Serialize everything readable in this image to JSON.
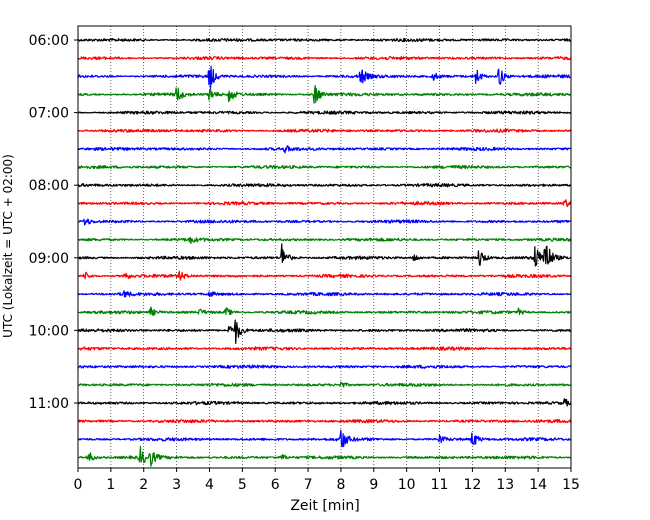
{
  "chart_data": {
    "type": "line",
    "title": "",
    "xlabel": "Zeit  [min]",
    "ylabel": "UTC (Lokalzeit = UTC + 02:00)",
    "xlim": [
      0,
      15
    ],
    "xticks": [
      0,
      1,
      2,
      3,
      4,
      5,
      6,
      7,
      8,
      9,
      10,
      11,
      12,
      13,
      14,
      15
    ],
    "xtick_labels": [
      "0",
      "1",
      "2",
      "3",
      "4",
      "5",
      "6",
      "7",
      "8",
      "9",
      "10",
      "11",
      "12",
      "13",
      "14",
      "15"
    ],
    "ytick_labels": [
      "06:00",
      "07:00",
      "08:00",
      "09:00",
      "10:00",
      "11:00"
    ],
    "ytick_rows": [
      0,
      4,
      8,
      12,
      16,
      20
    ],
    "grid_x": true,
    "colors": [
      "#000000",
      "#ff0000",
      "#0000ff",
      "#008000"
    ],
    "series": [
      {
        "start": "06:00",
        "color": "#000000",
        "events": []
      },
      {
        "start": "06:15",
        "color": "#ff0000",
        "events": []
      },
      {
        "start": "06:30",
        "color": "#0000ff",
        "events": [
          {
            "t": 4.0,
            "amp": 1.0
          },
          {
            "t": 8.6,
            "amp": 0.6
          },
          {
            "t": 10.8,
            "amp": 0.3
          },
          {
            "t": 12.1,
            "amp": 0.6
          },
          {
            "t": 12.8,
            "amp": 0.8
          }
        ]
      },
      {
        "start": "06:45",
        "color": "#008000",
        "events": [
          {
            "t": 3.0,
            "amp": 0.6
          },
          {
            "t": 4.0,
            "amp": 0.5
          },
          {
            "t": 4.6,
            "amp": 0.6
          },
          {
            "t": 7.2,
            "amp": 0.8
          }
        ]
      },
      {
        "start": "07:00",
        "color": "#000000",
        "events": []
      },
      {
        "start": "07:15",
        "color": "#ff0000",
        "events": []
      },
      {
        "start": "07:30",
        "color": "#0000ff",
        "events": [
          {
            "t": 6.3,
            "amp": 0.2
          }
        ]
      },
      {
        "start": "07:45",
        "color": "#008000",
        "events": []
      },
      {
        "start": "08:00",
        "color": "#000000",
        "events": []
      },
      {
        "start": "08:15",
        "color": "#ff0000",
        "events": [
          {
            "t": 14.8,
            "amp": 0.3
          }
        ]
      },
      {
        "start": "08:30",
        "color": "#0000ff",
        "events": [
          {
            "t": 0.2,
            "amp": 0.3
          }
        ]
      },
      {
        "start": "08:45",
        "color": "#008000",
        "events": [
          {
            "t": 3.4,
            "amp": 0.2
          }
        ]
      },
      {
        "start": "09:00",
        "color": "#000000",
        "events": [
          {
            "t": 6.2,
            "amp": 0.9
          },
          {
            "t": 10.2,
            "amp": 0.3
          },
          {
            "t": 12.2,
            "amp": 0.7
          },
          {
            "t": 13.9,
            "amp": 0.9
          },
          {
            "t": 14.2,
            "amp": 1.6
          }
        ]
      },
      {
        "start": "09:15",
        "color": "#ff0000",
        "events": [
          {
            "t": 0.2,
            "amp": 0.3
          },
          {
            "t": 1.4,
            "amp": 0.3
          },
          {
            "t": 3.1,
            "amp": 0.3
          }
        ]
      },
      {
        "start": "09:30",
        "color": "#0000ff",
        "events": [
          {
            "t": 1.4,
            "amp": 0.2
          },
          {
            "t": 4.0,
            "amp": 0.2
          }
        ]
      },
      {
        "start": "09:45",
        "color": "#008000",
        "events": [
          {
            "t": 2.2,
            "amp": 0.3
          },
          {
            "t": 3.7,
            "amp": 0.2
          },
          {
            "t": 4.5,
            "amp": 0.3
          },
          {
            "t": 13.4,
            "amp": 0.2
          }
        ]
      },
      {
        "start": "10:00",
        "color": "#000000",
        "events": [
          {
            "t": 4.6,
            "amp": 0.4
          },
          {
            "t": 4.8,
            "amp": 0.8
          }
        ]
      },
      {
        "start": "10:15",
        "color": "#ff0000",
        "events": []
      },
      {
        "start": "10:30",
        "color": "#0000ff",
        "events": []
      },
      {
        "start": "10:45",
        "color": "#008000",
        "events": [
          {
            "t": 8.0,
            "amp": 0.2
          }
        ]
      },
      {
        "start": "11:00",
        "color": "#000000",
        "events": [
          {
            "t": 14.8,
            "amp": 0.2
          }
        ]
      },
      {
        "start": "11:15",
        "color": "#ff0000",
        "events": []
      },
      {
        "start": "11:30",
        "color": "#0000ff",
        "events": [
          {
            "t": 8.0,
            "amp": 0.8
          },
          {
            "t": 11.0,
            "amp": 0.3
          },
          {
            "t": 12.0,
            "amp": 0.6
          }
        ]
      },
      {
        "start": "11:45",
        "color": "#008000",
        "events": [
          {
            "t": 0.3,
            "amp": 0.5
          },
          {
            "t": 1.9,
            "amp": 0.6
          },
          {
            "t": 2.2,
            "amp": 0.5
          },
          {
            "t": 6.2,
            "amp": 0.2
          }
        ]
      }
    ]
  }
}
